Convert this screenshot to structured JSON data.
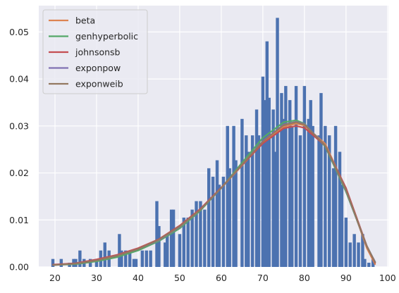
{
  "chart_data": {
    "type": "bar",
    "title": "",
    "xlabel": "",
    "ylabel": "",
    "xlim": [
      16.1,
      100.2
    ],
    "ylim": [
      0,
      0.0556
    ],
    "grid": true,
    "legend_placement": "top-left",
    "x_ticks": [
      20,
      30,
      40,
      50,
      60,
      70,
      80,
      90,
      100
    ],
    "y_ticks": [
      0.0,
      0.01,
      0.02,
      0.03,
      0.04,
      0.05
    ],
    "y_tick_labels": [
      "0.00",
      "0.01",
      "0.02",
      "0.03",
      "0.04",
      "0.05"
    ],
    "histogram": {
      "color": "#4c72b0",
      "bin_width": 0.75,
      "bins": [
        [
          19.5,
          0.0017
        ],
        [
          21.5,
          0.0017
        ],
        [
          23.5,
          0.0009
        ],
        [
          24.5,
          0.0017
        ],
        [
          25.0,
          0.0017
        ],
        [
          26.0,
          0.0035
        ],
        [
          27.0,
          0.0017
        ],
        [
          28.5,
          0.0017
        ],
        [
          30.0,
          0.0017
        ],
        [
          31.0,
          0.0035
        ],
        [
          32.0,
          0.0052
        ],
        [
          33.0,
          0.0035
        ],
        [
          35.5,
          0.007
        ],
        [
          36.0,
          0.0035
        ],
        [
          37.0,
          0.0035
        ],
        [
          38.0,
          0.0035
        ],
        [
          39.0,
          0.0017
        ],
        [
          39.5,
          0.0017
        ],
        [
          41.0,
          0.0035
        ],
        [
          42.0,
          0.0035
        ],
        [
          43.0,
          0.0035
        ],
        [
          44.5,
          0.014
        ],
        [
          45.0,
          0.0087
        ],
        [
          46.5,
          0.0052
        ],
        [
          47.0,
          0.007
        ],
        [
          48.0,
          0.0122
        ],
        [
          48.5,
          0.0122
        ],
        [
          50.0,
          0.007
        ],
        [
          51.0,
          0.0105
        ],
        [
          52.0,
          0.0105
        ],
        [
          53.0,
          0.0122
        ],
        [
          54.0,
          0.014
        ],
        [
          55.0,
          0.014
        ],
        [
          56.0,
          0.0122
        ],
        [
          57.0,
          0.021
        ],
        [
          58.0,
          0.0192
        ],
        [
          59.0,
          0.0227
        ],
        [
          59.5,
          0.0175
        ],
        [
          60.5,
          0.0192
        ],
        [
          61.5,
          0.03
        ],
        [
          62.0,
          0.021
        ],
        [
          63.0,
          0.03
        ],
        [
          63.5,
          0.0227
        ],
        [
          65.0,
          0.0315
        ],
        [
          66.0,
          0.028
        ],
        [
          66.5,
          0.0245
        ],
        [
          67.5,
          0.028
        ],
        [
          68.5,
          0.0335
        ],
        [
          69.0,
          0.028
        ],
        [
          70.0,
          0.0405
        ],
        [
          70.5,
          0.0355
        ],
        [
          71.0,
          0.048
        ],
        [
          71.5,
          0.036
        ],
        [
          72.5,
          0.0335
        ],
        [
          73.0,
          0.0245
        ],
        [
          73.5,
          0.053
        ],
        [
          74.5,
          0.037
        ],
        [
          75.0,
          0.0315
        ],
        [
          75.5,
          0.0385
        ],
        [
          76.5,
          0.0355
        ],
        [
          77.0,
          0.03
        ],
        [
          78.0,
          0.0385
        ],
        [
          79.0,
          0.028
        ],
        [
          80.0,
          0.0385
        ],
        [
          81.0,
          0.0315
        ],
        [
          81.5,
          0.0355
        ],
        [
          82.0,
          0.03
        ],
        [
          83.5,
          0.028
        ],
        [
          84.0,
          0.037
        ],
        [
          85.0,
          0.03
        ],
        [
          86.0,
          0.028
        ],
        [
          87.0,
          0.021
        ],
        [
          87.5,
          0.03
        ],
        [
          88.5,
          0.0245
        ],
        [
          89.0,
          0.0175
        ],
        [
          90.0,
          0.0105
        ],
        [
          91.0,
          0.0052
        ],
        [
          92.0,
          0.007
        ],
        [
          93.0,
          0.0052
        ],
        [
          94.0,
          0.007
        ],
        [
          94.5,
          0.0017
        ],
        [
          95.5,
          0.0009
        ],
        [
          96.5,
          0.0017
        ]
      ]
    },
    "series": [
      {
        "name": "beta",
        "color": "#dd8452",
        "x": [
          19.5,
          25,
          30,
          35,
          40,
          45,
          50,
          55,
          60,
          65,
          70,
          75,
          78,
          80,
          85,
          90,
          95,
          97
        ],
        "y": [
          0.0004,
          0.0007,
          0.0015,
          0.0025,
          0.0039,
          0.0058,
          0.0087,
          0.0123,
          0.0168,
          0.0216,
          0.0264,
          0.0298,
          0.0305,
          0.0301,
          0.0262,
          0.0166,
          0.004,
          0.0006
        ]
      },
      {
        "name": "genhyperbolic",
        "color": "#55a868",
        "x": [
          19.5,
          25,
          30,
          35,
          40,
          45,
          50,
          55,
          60,
          65,
          70,
          75,
          78,
          80,
          85,
          90,
          95,
          97
        ],
        "y": [
          0.0004,
          0.0006,
          0.0012,
          0.0021,
          0.0035,
          0.0055,
          0.0082,
          0.012,
          0.0168,
          0.0222,
          0.0275,
          0.0308,
          0.0312,
          0.0305,
          0.0256,
          0.016,
          0.0045,
          0.001
        ]
      },
      {
        "name": "johnsonsb",
        "color": "#c44e52",
        "x": [
          19.5,
          25,
          30,
          35,
          40,
          45,
          50,
          55,
          60,
          65,
          70,
          75,
          78,
          80,
          85,
          90,
          95,
          97
        ],
        "y": [
          0.0005,
          0.0008,
          0.0016,
          0.0026,
          0.004,
          0.0059,
          0.0088,
          0.0124,
          0.0169,
          0.0217,
          0.0263,
          0.0295,
          0.03,
          0.0296,
          0.0258,
          0.0168,
          0.0045,
          0.0009
        ]
      },
      {
        "name": "exponpow",
        "color": "#8172b3",
        "x": [
          19.5,
          25,
          30,
          35,
          40,
          45,
          50,
          55,
          60,
          65,
          70,
          75,
          78,
          80,
          85,
          90,
          95,
          97
        ],
        "y": [
          0.0004,
          0.0007,
          0.0014,
          0.0024,
          0.0038,
          0.0057,
          0.0085,
          0.0122,
          0.0168,
          0.0218,
          0.0268,
          0.0303,
          0.0309,
          0.0304,
          0.0258,
          0.0163,
          0.0044,
          0.0011
        ]
      },
      {
        "name": "exponweib",
        "color": "#937860",
        "x": [
          19.5,
          25,
          30,
          35,
          40,
          45,
          50,
          55,
          60,
          65,
          70,
          75,
          78,
          80,
          85,
          90,
          95,
          97
        ],
        "y": [
          0.0004,
          0.0007,
          0.0014,
          0.0024,
          0.0038,
          0.0058,
          0.0086,
          0.0122,
          0.0168,
          0.0218,
          0.0267,
          0.0302,
          0.0308,
          0.0303,
          0.0258,
          0.0164,
          0.0044,
          0.001
        ]
      }
    ]
  }
}
